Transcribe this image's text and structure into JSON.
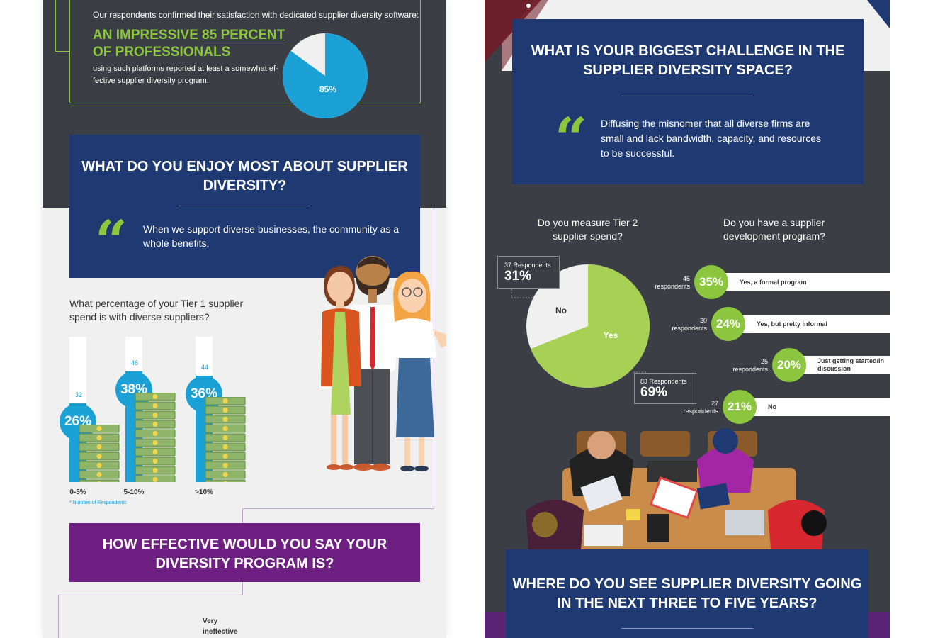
{
  "left": {
    "satisfaction": {
      "intro": "Our respondents confirmed their satisfaction with dedicated supplier diversity software:",
      "headline_a": "AN IMPRESSIVE ",
      "headline_b": "85 PERCENT",
      "headline_c": "OF PROFESSIONALS",
      "desc": "using such platforms reported at least a somewhat ef- fective supplier diversity program.",
      "pie_label": "85%",
      "pie_value": 85
    },
    "enjoy": {
      "title": "WHAT DO YOU ENJOY MOST ABOUT SUPPLIER DIVERSITY?",
      "quote": "When we support diverse businesses, the community as a whole benefits."
    },
    "tier1": {
      "question": "What percentage of your Tier 1 supplier spend is with diverse suppliers?",
      "bars": [
        {
          "label": "0-5%",
          "pct": "26%",
          "count": "32",
          "fill": 0.54
        },
        {
          "label": "5-10%",
          "pct": "38%",
          "count": "46",
          "fill": 0.76
        },
        {
          "label": ">10%",
          "pct": "36%",
          "count": "44",
          "fill": 0.73
        }
      ],
      "footnote": "* Number of Respondents"
    },
    "effective": {
      "title": "HOW EFFECTIVE WOULD YOU SAY YOUR DIVERSITY PROGRAM IS?",
      "first_label": "Very ineffective"
    }
  },
  "right": {
    "challenge": {
      "title": "WHAT IS YOUR BIGGEST CHALLENGE IN THE SUPPLIER DIVERSITY SPACE?",
      "quote": "Diffusing the misnomer that all diverse firms are small and lack bandwidth, capacity, and resources to be successful."
    },
    "tier2": {
      "question": "Do you measure Tier 2 supplier spend?",
      "no_label": "No",
      "yes_label": "Yes",
      "no_respondents": "37 Respondents",
      "no_pct": "31%",
      "yes_respondents": "83 Respondents",
      "yes_pct": "69%",
      "yes_value": 69
    },
    "dev_program": {
      "question": "Do you have a supplier development program?",
      "rows": [
        {
          "count": "45",
          "unit": "respondents",
          "pct": "35%",
          "label": "Yes, a formal program"
        },
        {
          "count": "30",
          "unit": "respondents",
          "pct": "24%",
          "label": "Yes, but pretty informal"
        },
        {
          "count": "25",
          "unit": "respondents",
          "pct": "20%",
          "label": "Just getting started/in discussion"
        },
        {
          "count": "27",
          "unit": "respondents",
          "pct": "21%",
          "label": "No"
        }
      ]
    },
    "future": {
      "title": "WHERE DO YOU SEE SUPPLIER DIVERSITY GOING IN THE NEXT THREE TO FIVE YEARS?"
    }
  },
  "colors": {
    "navy": "#1f3a73",
    "green": "#8cc63f",
    "blue": "#1ba1d6",
    "purple": "#6d2082",
    "dark": "#3b3e45"
  }
}
